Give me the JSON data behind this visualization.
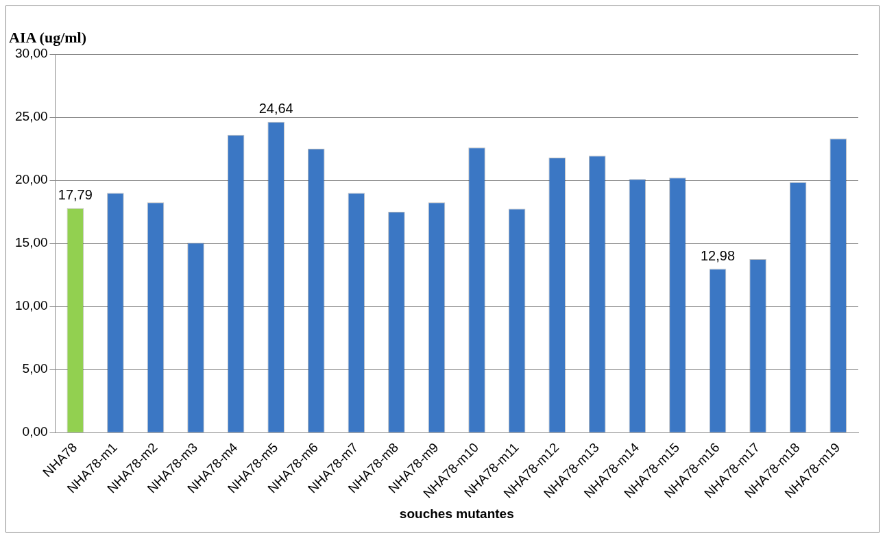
{
  "chart_data": {
    "type": "bar",
    "ylabel": "AIA (ug/ml)",
    "xlabel": "souches mutantes",
    "categories": [
      "NHA78",
      "NHA78-m1",
      "NHA78-m2",
      "NHA78-m3",
      "NHA78-m4",
      "NHA78-m5",
      "NHA78-m6",
      "NHA78-m7",
      "NHA78-m8",
      "NHA78-m9",
      "NHA78-m10",
      "NHA78-m11",
      "NHA78-m12",
      "NHA78-m13",
      "NHA78-m14",
      "NHA78-m15",
      "NHA78-m16",
      "NHA78-m17",
      "NHA78-m18",
      "NHA78-m19"
    ],
    "values": [
      17.79,
      19.0,
      18.25,
      15.05,
      23.6,
      24.64,
      22.5,
      19.0,
      17.5,
      18.25,
      22.6,
      17.75,
      21.8,
      21.95,
      20.1,
      20.2,
      12.98,
      13.75,
      19.85,
      23.3
    ],
    "colors": [
      "#92d050",
      "#3b77c4",
      "#3b77c4",
      "#3b77c4",
      "#3b77c4",
      "#3b77c4",
      "#3b77c4",
      "#3b77c4",
      "#3b77c4",
      "#3b77c4",
      "#3b77c4",
      "#3b77c4",
      "#3b77c4",
      "#3b77c4",
      "#3b77c4",
      "#3b77c4",
      "#3b77c4",
      "#3b77c4",
      "#3b77c4",
      "#3b77c4"
    ],
    "value_labels": [
      "17,79",
      null,
      null,
      null,
      null,
      "24,64",
      null,
      null,
      null,
      null,
      null,
      null,
      null,
      null,
      null,
      null,
      "12,98",
      null,
      null,
      null
    ],
    "ylim": [
      0,
      30
    ],
    "yticks": [
      {
        "value": 0,
        "label": "0,00"
      },
      {
        "value": 5,
        "label": "5,00"
      },
      {
        "value": 10,
        "label": "10,00"
      },
      {
        "value": 15,
        "label": "15,00"
      },
      {
        "value": 20,
        "label": "20,00"
      },
      {
        "value": 25,
        "label": "25,00"
      },
      {
        "value": 30,
        "label": "30,00"
      }
    ],
    "grid": "y"
  }
}
